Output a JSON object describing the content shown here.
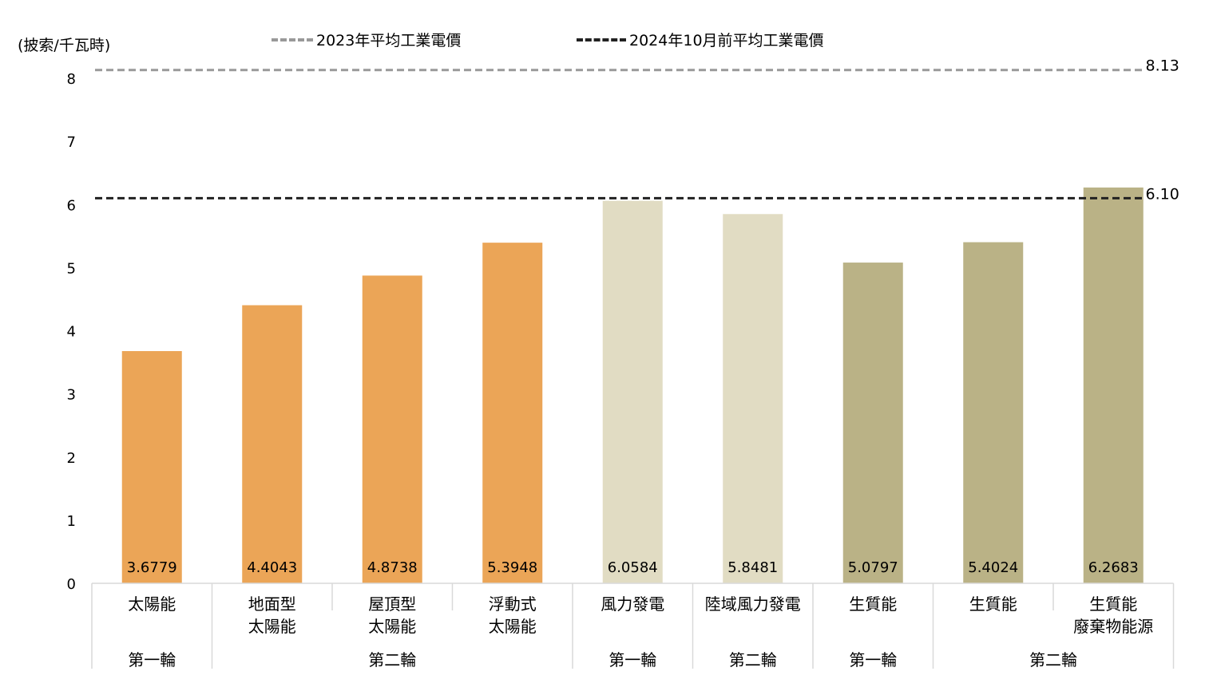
{
  "chart_data": {
    "type": "bar",
    "y_unit_label": "(披索/千瓦時)",
    "ylim": [
      0,
      8
    ],
    "yticks": [
      "0",
      "1",
      "2",
      "3",
      "4",
      "5",
      "6",
      "7",
      "8"
    ],
    "grid": false,
    "categories": [
      {
        "label": "太陽能",
        "value": 3.6779,
        "value_label": "3.6779",
        "color": "#EBA557"
      },
      {
        "label": "地面型\n太陽能",
        "value": 4.4043,
        "value_label": "4.4043",
        "color": "#EBA557"
      },
      {
        "label": "屋頂型\n太陽能",
        "value": 4.8738,
        "value_label": "4.8738",
        "color": "#EBA557"
      },
      {
        "label": "浮動式\n太陽能",
        "value": 5.3948,
        "value_label": "5.3948",
        "color": "#EBA557"
      },
      {
        "label": "風力發電",
        "value": 6.0584,
        "value_label": "6.0584",
        "color": "#E1DCC3"
      },
      {
        "label": "陸域風力發電",
        "value": 5.8481,
        "value_label": "5.8481",
        "color": "#E1DCC3"
      },
      {
        "label": "生質能",
        "value": 5.0797,
        "value_label": "5.0797",
        "color": "#BAB286"
      },
      {
        "label": "生質能",
        "value": 5.4024,
        "value_label": "5.4024",
        "color": "#BAB286"
      },
      {
        "label": "生質能\n廢棄物能源",
        "value": 6.2683,
        "value_label": "6.2683",
        "color": "#BAB286"
      }
    ],
    "groups": [
      {
        "label": "第一輪",
        "start": 0,
        "end": 0
      },
      {
        "label": "第二輪",
        "start": 1,
        "end": 3
      },
      {
        "label": "第一輪",
        "start": 4,
        "end": 4
      },
      {
        "label": "第二輪",
        "start": 5,
        "end": 5
      },
      {
        "label": "第一輪",
        "start": 6,
        "end": 6
      },
      {
        "label": "第二輪",
        "start": 7,
        "end": 8
      }
    ],
    "reference_lines": [
      {
        "name": "2023年平均工業電價",
        "value": 8.13,
        "value_label": "8.13",
        "color": "#999999"
      },
      {
        "name": "2024年10月前平均工業電價",
        "value": 6.1,
        "value_label": "6.10",
        "color": "#222222"
      }
    ],
    "legend_position": "top"
  }
}
